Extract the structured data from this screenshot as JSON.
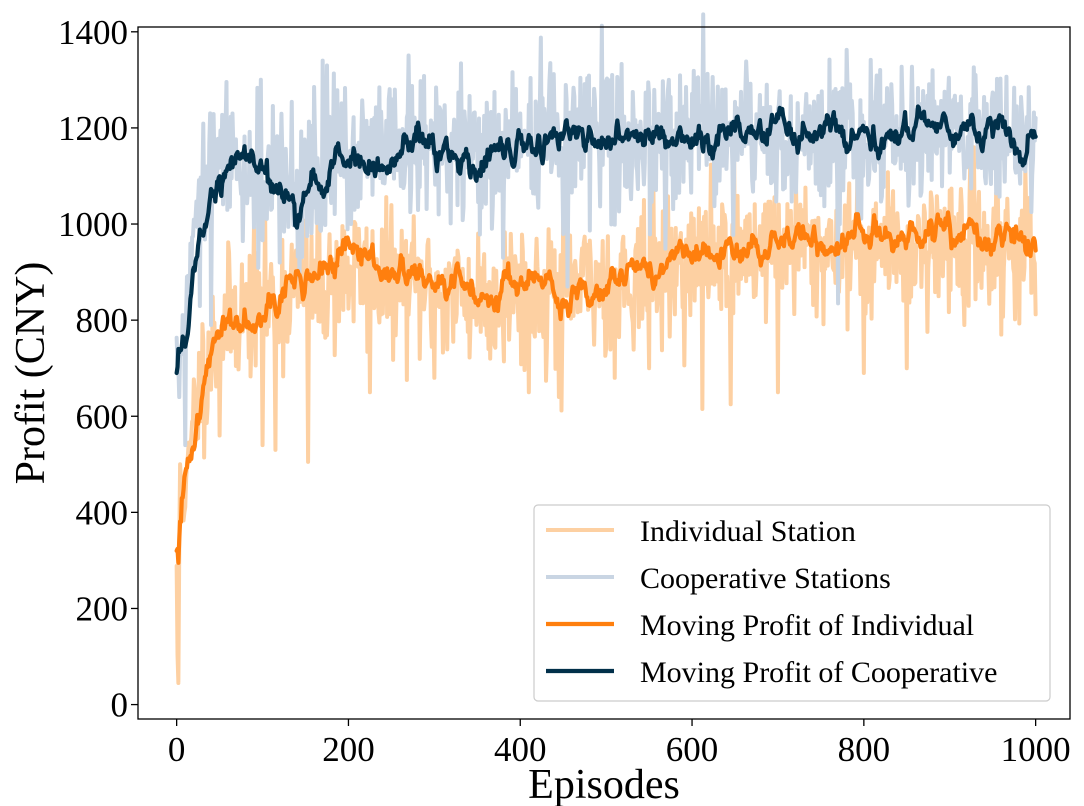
{
  "chart_data": {
    "type": "line",
    "title": "",
    "xlabel": "Episodes",
    "ylabel": "Profit (CNY)",
    "xlim": [
      -45,
      1040
    ],
    "ylim": [
      -30,
      1410
    ],
    "xticks": [
      0,
      200,
      400,
      600,
      800,
      1000
    ],
    "yticks": [
      0,
      200,
      400,
      600,
      800,
      1000,
      1200,
      1400
    ],
    "grid": false,
    "legend_position": "lower-right",
    "episodes": 1000,
    "series": [
      {
        "name": "Individual Station",
        "color": "#fdd0a2",
        "width": 4,
        "kind": "raw",
        "anchors": [
          [
            0,
            300
          ],
          [
            1,
            50
          ],
          [
            4,
            480
          ],
          [
            10,
            420
          ],
          [
            20,
            600
          ],
          [
            30,
            680
          ],
          [
            45,
            760
          ],
          [
            60,
            800
          ],
          [
            80,
            820
          ],
          [
            100,
            830
          ],
          [
            120,
            850
          ],
          [
            140,
            880
          ],
          [
            160,
            860
          ],
          [
            200,
            900
          ],
          [
            250,
            880
          ],
          [
            300,
            860
          ],
          [
            350,
            850
          ],
          [
            400,
            870
          ],
          [
            440,
            860
          ],
          [
            500,
            880
          ],
          [
            550,
            900
          ],
          [
            600,
            920
          ],
          [
            650,
            940
          ],
          [
            700,
            960
          ],
          [
            750,
            950
          ],
          [
            800,
            960
          ],
          [
            850,
            950
          ],
          [
            900,
            970
          ],
          [
            950,
            960
          ],
          [
            1000,
            950
          ]
        ],
        "spikes": [
          [
            2,
            45
          ],
          [
            50,
            560
          ],
          [
            100,
            540
          ],
          [
            115,
            530
          ],
          [
            153,
            505
          ],
          [
            225,
            650
          ],
          [
            300,
            680
          ],
          [
            365,
            720
          ],
          [
            410,
            650
          ],
          [
            445,
            640
          ],
          [
            448,
            612
          ],
          [
            510,
            680
          ],
          [
            550,
            700
          ],
          [
            612,
            615
          ],
          [
            645,
            625
          ],
          [
            700,
            650
          ],
          [
            800,
            690
          ],
          [
            850,
            700
          ],
          [
            917,
            790
          ],
          [
            960,
            770
          ]
        ],
        "noise_std": 70,
        "seed": 11
      },
      {
        "name": "Cooperative Stations",
        "color": "#c9d5e3",
        "width": 4,
        "kind": "raw",
        "anchors": [
          [
            0,
            700
          ],
          [
            5,
            740
          ],
          [
            15,
            880
          ],
          [
            30,
            1060
          ],
          [
            50,
            1130
          ],
          [
            80,
            1120
          ],
          [
            100,
            1100
          ],
          [
            130,
            1070
          ],
          [
            160,
            1100
          ],
          [
            200,
            1130
          ],
          [
            250,
            1150
          ],
          [
            300,
            1160
          ],
          [
            350,
            1140
          ],
          [
            400,
            1170
          ],
          [
            450,
            1180
          ],
          [
            500,
            1170
          ],
          [
            550,
            1170
          ],
          [
            600,
            1180
          ],
          [
            650,
            1180
          ],
          [
            700,
            1180
          ],
          [
            750,
            1170
          ],
          [
            800,
            1180
          ],
          [
            850,
            1200
          ],
          [
            900,
            1190
          ],
          [
            950,
            1190
          ],
          [
            1000,
            1180
          ]
        ],
        "spikes": [
          [
            3,
            640
          ],
          [
            10,
            540
          ],
          [
            40,
            790
          ],
          [
            120,
            920
          ],
          [
            170,
            1340
          ],
          [
            175,
            1330
          ],
          [
            380,
            930
          ],
          [
            455,
            870
          ],
          [
            507,
            1310
          ],
          [
            573,
            1300
          ],
          [
            770,
            835
          ],
          [
            880,
            1320
          ],
          [
            930,
            1310
          ]
        ],
        "noise_std": 75,
        "seed": 29
      },
      {
        "name": "Moving Profit of Individual",
        "color": "#ff7f0e",
        "width": 4.2,
        "kind": "moving",
        "anchors": [
          [
            0,
            320
          ],
          [
            2,
            295
          ],
          [
            5,
            380
          ],
          [
            10,
            470
          ],
          [
            20,
            560
          ],
          [
            30,
            650
          ],
          [
            45,
            760
          ],
          [
            60,
            800
          ],
          [
            80,
            810
          ],
          [
            100,
            840
          ],
          [
            120,
            850
          ],
          [
            140,
            880
          ],
          [
            160,
            890
          ],
          [
            180,
            920
          ],
          [
            200,
            940
          ],
          [
            220,
            930
          ],
          [
            250,
            900
          ],
          [
            280,
            890
          ],
          [
            300,
            870
          ],
          [
            330,
            870
          ],
          [
            350,
            850
          ],
          [
            380,
            875
          ],
          [
            400,
            890
          ],
          [
            430,
            870
          ],
          [
            450,
            820
          ],
          [
            480,
            860
          ],
          [
            500,
            900
          ],
          [
            530,
            900
          ],
          [
            560,
            910
          ],
          [
            600,
            940
          ],
          [
            630,
            920
          ],
          [
            660,
            940
          ],
          [
            690,
            960
          ],
          [
            700,
            980
          ],
          [
            730,
            970
          ],
          [
            760,
            950
          ],
          [
            790,
            980
          ],
          [
            800,
            990
          ],
          [
            820,
            970
          ],
          [
            840,
            960
          ],
          [
            870,
            970
          ],
          [
            900,
            990
          ],
          [
            930,
            970
          ],
          [
            950,
            945
          ],
          [
            970,
            990
          ],
          [
            985,
            960
          ],
          [
            1000,
            960
          ]
        ],
        "noise_std": 11,
        "seed": 41
      },
      {
        "name": "Moving Profit of Cooperative",
        "color": "#01304a",
        "width": 4.2,
        "kind": "moving",
        "anchors": [
          [
            0,
            690
          ],
          [
            2,
            740
          ],
          [
            10,
            720
          ],
          [
            15,
            820
          ],
          [
            25,
            940
          ],
          [
            35,
            1010
          ],
          [
            50,
            1090
          ],
          [
            60,
            1130
          ],
          [
            80,
            1120
          ],
          [
            100,
            1110
          ],
          [
            120,
            1070
          ],
          [
            140,
            1040
          ],
          [
            160,
            1060
          ],
          [
            180,
            1090
          ],
          [
            200,
            1150
          ],
          [
            220,
            1110
          ],
          [
            240,
            1110
          ],
          [
            260,
            1140
          ],
          [
            280,
            1200
          ],
          [
            300,
            1150
          ],
          [
            330,
            1130
          ],
          [
            360,
            1120
          ],
          [
            380,
            1140
          ],
          [
            400,
            1170
          ],
          [
            430,
            1170
          ],
          [
            460,
            1190
          ],
          [
            480,
            1150
          ],
          [
            500,
            1180
          ],
          [
            520,
            1180
          ],
          [
            540,
            1190
          ],
          [
            560,
            1180
          ],
          [
            580,
            1170
          ],
          [
            600,
            1190
          ],
          [
            620,
            1170
          ],
          [
            640,
            1190
          ],
          [
            660,
            1180
          ],
          [
            680,
            1200
          ],
          [
            700,
            1190
          ],
          [
            720,
            1180
          ],
          [
            740,
            1190
          ],
          [
            760,
            1180
          ],
          [
            780,
            1170
          ],
          [
            800,
            1180
          ],
          [
            820,
            1170
          ],
          [
            840,
            1200
          ],
          [
            860,
            1220
          ],
          [
            880,
            1210
          ],
          [
            900,
            1200
          ],
          [
            920,
            1200
          ],
          [
            940,
            1190
          ],
          [
            960,
            1210
          ],
          [
            975,
            1150
          ],
          [
            985,
            1110
          ],
          [
            992,
            1160
          ],
          [
            1000,
            1160
          ]
        ],
        "noise_std": 11,
        "seed": 57
      }
    ]
  }
}
